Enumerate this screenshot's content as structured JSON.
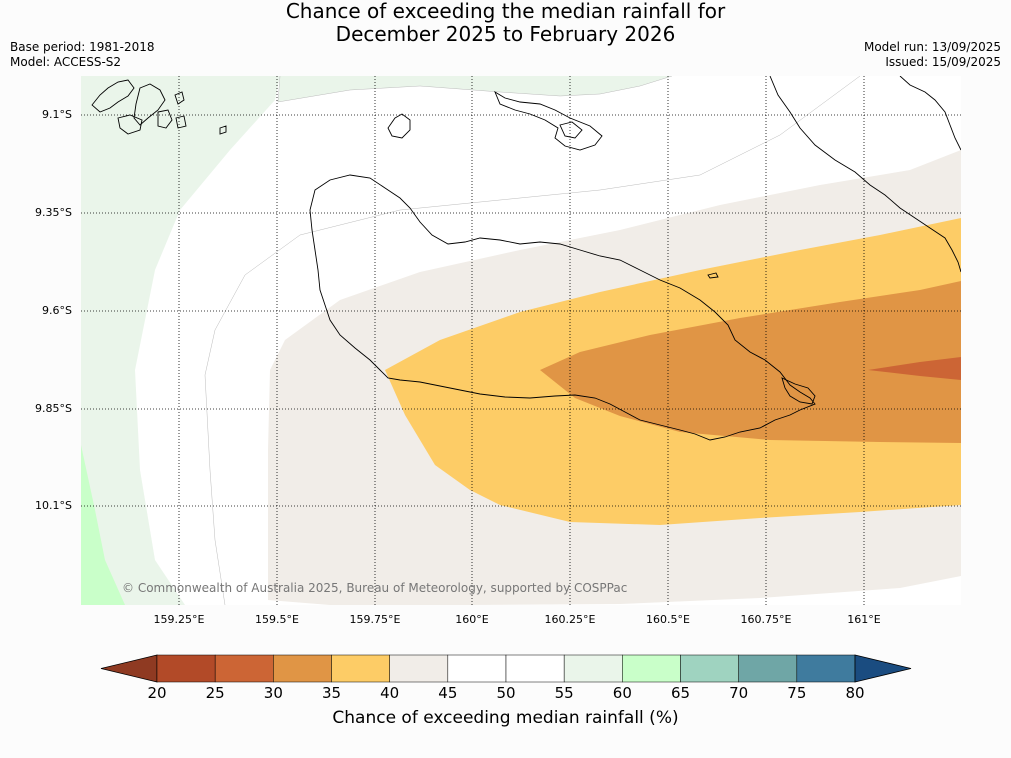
{
  "header": {
    "title_line1": "Chance of exceeding the median rainfall for",
    "title_line2": "December 2025 to February 2026",
    "base_period": "Base period: 1981-2018",
    "model": "Model: ACCESS-S2",
    "model_run": "Model run: 13/09/2025",
    "issued": "Issued: 15/09/2025"
  },
  "map": {
    "lat_labels": [
      "9.1°S",
      "9.35°S",
      "9.6°S",
      "9.85°S",
      "10.1°S"
    ],
    "lon_labels": [
      "159.25°E",
      "159.5°E",
      "159.75°E",
      "160°E",
      "160.25°E",
      "160.5°E",
      "160.75°E",
      "161°E"
    ],
    "copyright": "© Commonwealth of Australia 2025, Bureau of Meteorology, supported by COSPPac"
  },
  "colorbar": {
    "title": "Chance of exceeding median rainfall (%)",
    "ticks": [
      "20",
      "25",
      "30",
      "35",
      "40",
      "45",
      "50",
      "55",
      "60",
      "65",
      "70",
      "75",
      "80"
    ],
    "colors": [
      "#b24a28",
      "#cc6535",
      "#e09545",
      "#fdcc66",
      "#f1ede8",
      "#ffffff",
      "#ffffff",
      "#eaf5ea",
      "#c9ffc9",
      "#9fd3c0",
      "#6fa6a6",
      "#3f7b9e"
    ],
    "under_color": "#8f3a22",
    "over_color": "#1a4c80"
  }
}
